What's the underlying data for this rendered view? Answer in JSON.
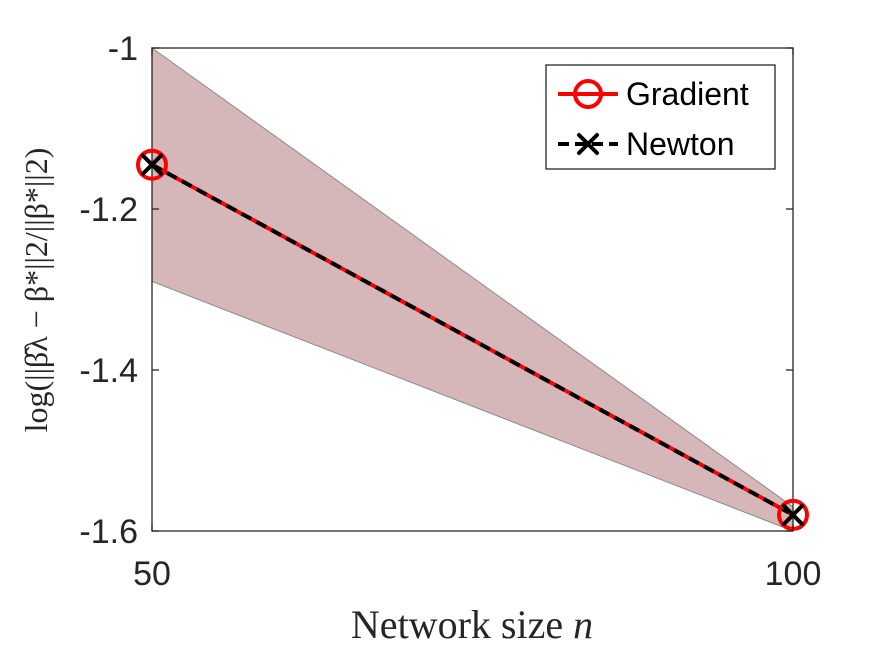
{
  "chart_data": {
    "type": "line",
    "x": [
      50,
      100
    ],
    "xlim": [
      50,
      100
    ],
    "ylim": [
      -1.6,
      -1.0
    ],
    "xticks": [
      50,
      100
    ],
    "xtick_labels": [
      "50",
      "100"
    ],
    "yticks": [
      -1.0,
      -1.2,
      -1.4,
      -1.6
    ],
    "ytick_labels": [
      "-1",
      "-1.2",
      "-1.4",
      "-1.6"
    ],
    "xlabel": {
      "text": "Network size ",
      "var": "n"
    },
    "ylabel": "log(||β̂λ − β*||2/||β*||2)",
    "grid": false,
    "legend_position": "top-right",
    "band": {
      "lower": [
        -1.29,
        -1.6
      ],
      "upper": [
        -1.0,
        -1.57
      ],
      "color": "#d6b7b9"
    },
    "series": [
      {
        "name": "Gradient",
        "values": [
          -1.145,
          -1.58
        ],
        "color": "#ff0000",
        "line": "solid",
        "marker": "circle"
      },
      {
        "name": "Newton",
        "values": [
          -1.145,
          -1.58
        ],
        "color": "#000000",
        "line": "dashed",
        "marker": "x"
      }
    ]
  }
}
